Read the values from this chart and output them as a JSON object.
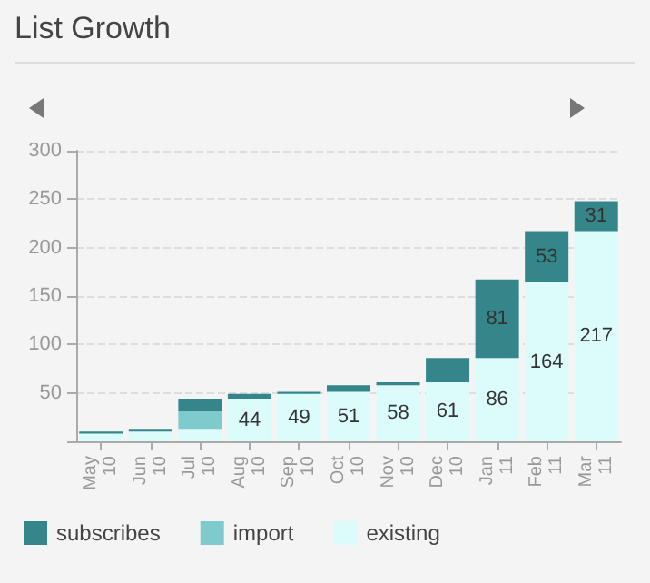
{
  "chart_data": {
    "type": "bar",
    "title": "List Growth",
    "stacked": true,
    "categories": [
      "May 10",
      "Jun 10",
      "Jul 10",
      "Aug 10",
      "Sep 10",
      "Oct 10",
      "Nov 10",
      "Dec 10",
      "Jan 11",
      "Feb 11",
      "Mar 11"
    ],
    "series": [
      {
        "name": "existing",
        "color": "#dcfcfc",
        "values": [
          8,
          10,
          13,
          44,
          49,
          51,
          58,
          61,
          86,
          164,
          217
        ],
        "value_labels": [
          null,
          null,
          null,
          "44",
          "49",
          "51",
          "58",
          "61",
          "86",
          "164",
          "217"
        ]
      },
      {
        "name": "import",
        "color": "#7ecacc",
        "values": [
          null,
          null,
          18,
          null,
          null,
          null,
          null,
          null,
          null,
          null,
          null
        ]
      },
      {
        "name": "subscribes",
        "color": "#35868a",
        "values": [
          2,
          3,
          13,
          5,
          2,
          7,
          3,
          25,
          81,
          53,
          31
        ],
        "value_labels": [
          null,
          null,
          null,
          null,
          null,
          null,
          null,
          null,
          "81",
          "53",
          "31"
        ]
      }
    ],
    "ylim": [
      0,
      300
    ],
    "yticks": [
      {
        "value": 0,
        "label": null
      },
      50,
      100,
      150,
      200,
      250,
      300
    ],
    "grid": "y",
    "legend": "bottom left"
  }
}
